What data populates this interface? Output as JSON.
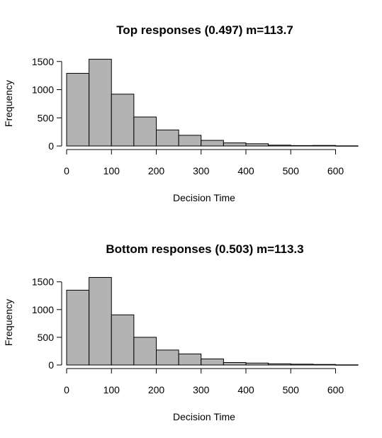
{
  "chart_data": [
    {
      "type": "bar",
      "title": "Top responses (0.497) m=113.7",
      "xlabel": "Decision Time",
      "ylabel": "Frequency",
      "bin_width": 50,
      "bins": [
        {
          "start": 0,
          "end": 50,
          "count": 1290
        },
        {
          "start": 50,
          "end": 100,
          "count": 1540
        },
        {
          "start": 100,
          "end": 150,
          "count": 920
        },
        {
          "start": 150,
          "end": 200,
          "count": 515
        },
        {
          "start": 200,
          "end": 250,
          "count": 285
        },
        {
          "start": 250,
          "end": 300,
          "count": 190
        },
        {
          "start": 300,
          "end": 350,
          "count": 100
        },
        {
          "start": 350,
          "end": 400,
          "count": 55
        },
        {
          "start": 400,
          "end": 450,
          "count": 40
        },
        {
          "start": 450,
          "end": 500,
          "count": 15
        },
        {
          "start": 500,
          "end": 550,
          "count": 8
        },
        {
          "start": 550,
          "end": 600,
          "count": 10
        },
        {
          "start": 600,
          "end": 650,
          "count": 3
        }
      ],
      "xticks": [
        0,
        100,
        200,
        300,
        400,
        500,
        600
      ],
      "yticks": [
        0,
        500,
        1000,
        1500
      ],
      "xlim": [
        -20,
        650
      ],
      "ylim": [
        0,
        1600
      ]
    },
    {
      "type": "bar",
      "title": "Bottom responses (0.503) m=113.3",
      "xlabel": "Decision Time",
      "ylabel": "Frequency",
      "bin_width": 50,
      "bins": [
        {
          "start": 0,
          "end": 50,
          "count": 1350
        },
        {
          "start": 50,
          "end": 100,
          "count": 1580
        },
        {
          "start": 100,
          "end": 150,
          "count": 905
        },
        {
          "start": 150,
          "end": 200,
          "count": 500
        },
        {
          "start": 200,
          "end": 250,
          "count": 270
        },
        {
          "start": 250,
          "end": 300,
          "count": 200
        },
        {
          "start": 300,
          "end": 350,
          "count": 110
        },
        {
          "start": 350,
          "end": 400,
          "count": 45
        },
        {
          "start": 400,
          "end": 450,
          "count": 35
        },
        {
          "start": 450,
          "end": 500,
          "count": 22
        },
        {
          "start": 500,
          "end": 550,
          "count": 15
        },
        {
          "start": 550,
          "end": 600,
          "count": 10
        },
        {
          "start": 600,
          "end": 650,
          "count": 3
        }
      ],
      "xticks": [
        0,
        100,
        200,
        300,
        400,
        500,
        600
      ],
      "yticks": [
        0,
        500,
        1000,
        1500
      ],
      "xlim": [
        -20,
        650
      ],
      "ylim": [
        0,
        1600
      ]
    }
  ]
}
